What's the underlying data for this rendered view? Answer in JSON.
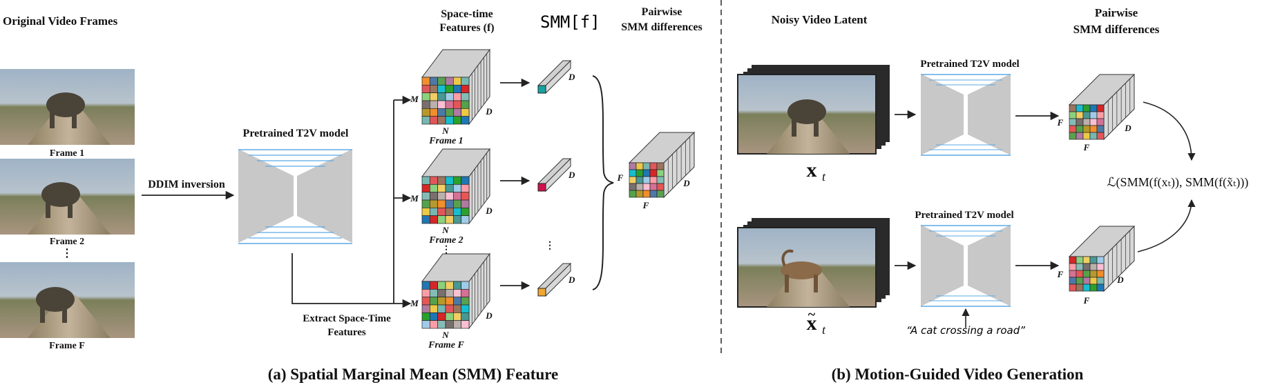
{
  "left": {
    "frames_title": "Original Video Frames",
    "frames": [
      {
        "label": "Frame 1"
      },
      {
        "label": "Frame 2"
      },
      {
        "label": "Frame F"
      }
    ],
    "ellipsis": "⋮",
    "ddim_label": "DDIM inversion",
    "model_label": "Pretrained T2V model",
    "extract_label_line1": "Extract Space-Time",
    "extract_label_line2": "Features",
    "st_title_line1": "Space-time",
    "st_title_line2": "Features (f)",
    "smm_title": "SMM[f]",
    "pair_title_line1": "Pairwise",
    "pair_title_line2": "SMM differences",
    "cube_frames": [
      "Frame 1",
      "Frame 2",
      "Frame F"
    ],
    "dim_M": "M",
    "dim_N": "N",
    "dim_D": "D",
    "dim_F": "F",
    "caption": "(a)  Spatial Marginal Mean (SMM) Feature"
  },
  "right": {
    "latent_title": "Noisy Video Latent",
    "pair_title_line1": "Pairwise",
    "pair_title_line2": "SMM differences",
    "model_top": "Pretrained T2V model",
    "model_bottom": "Pretrained T2V model",
    "xt": "x",
    "xt_sub": "t",
    "prompt": "“A cat crossing a road”",
    "loss": "ℒ(SMM(f(xₜ)), SMM(f(x̃ₜ)))",
    "dim_F": "F",
    "dim_D": "D",
    "caption": "(b) Motion-Guided Video Generation"
  },
  "colors": {
    "grid": [
      "#f28e2b",
      "#4e79a7",
      "#59a14f",
      "#b07aa1",
      "#edc948",
      "#76b7b2",
      "#e15759",
      "#9c755f",
      "#17becf",
      "#2ca02c",
      "#1f77b4",
      "#d62728",
      "#8cd17d",
      "#f1ce63",
      "#499894",
      "#a0cbe8",
      "#ff9da7",
      "#86bcb6",
      "#79706e",
      "#bab0ac",
      "#fabfd2",
      "#d37295",
      "#e45756",
      "#54a24b",
      "#b6992d"
    ],
    "vec1": "#17a2a2",
    "vec2": "#d0104c",
    "vec3": "#f0a830",
    "model_gray": "#c8c8c8",
    "model_lines": "#5aa9e6",
    "divider": "#333333"
  }
}
